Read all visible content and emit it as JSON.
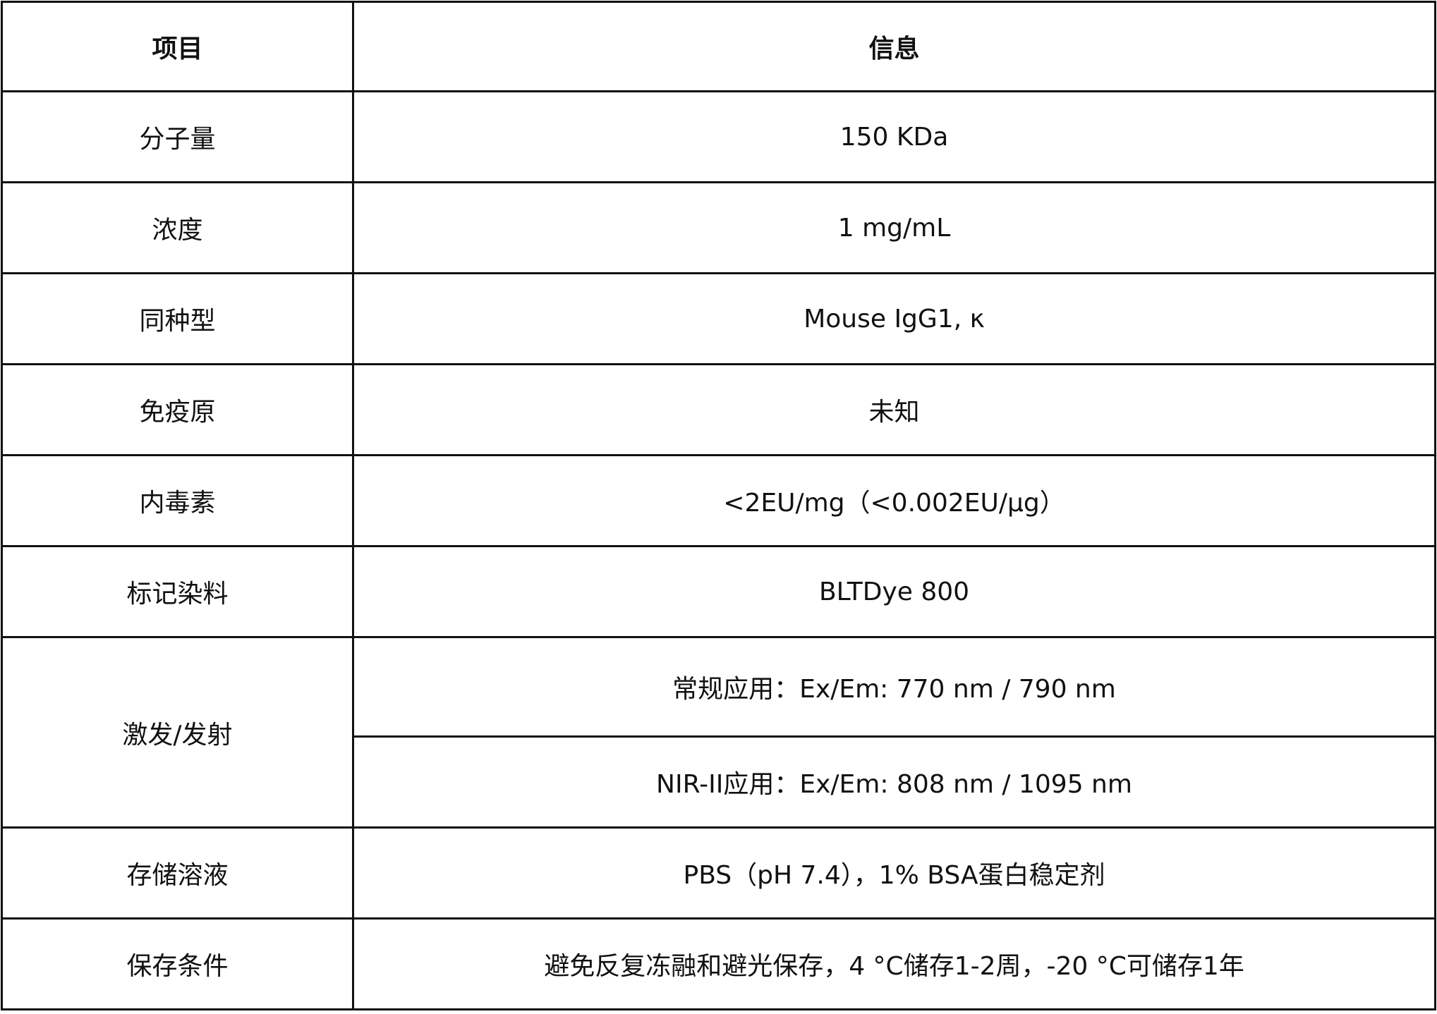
{
  "header": {
    "item": "项目",
    "info": "信息"
  },
  "rows": [
    {
      "label": "分子量",
      "value": "150 KDa"
    },
    {
      "label": "浓度",
      "value": "1 mg/mL"
    },
    {
      "label": "同种型",
      "value": "Mouse IgG1, κ"
    },
    {
      "label": "免疫原",
      "value": "未知"
    },
    {
      "label": "内毒素",
      "value": "<2EU/mg（<0.002EU/μg）"
    },
    {
      "label": "标记染料",
      "value": "BLTDye 800"
    }
  ],
  "excitation": {
    "label": "激发/发射",
    "values": [
      "常规应用：Ex/Em: 770 nm / 790 nm",
      "NIR-II应用：Ex/Em: 808 nm / 1095 nm"
    ]
  },
  "rows2": [
    {
      "label": "存储溶液",
      "value": "PBS（pH 7.4），1% BSA蛋白稳定剂"
    },
    {
      "label": "保存条件",
      "value": "避免反复冻融和避光保存，4 °C储存1-2周，-20 °C可储存1年"
    }
  ]
}
